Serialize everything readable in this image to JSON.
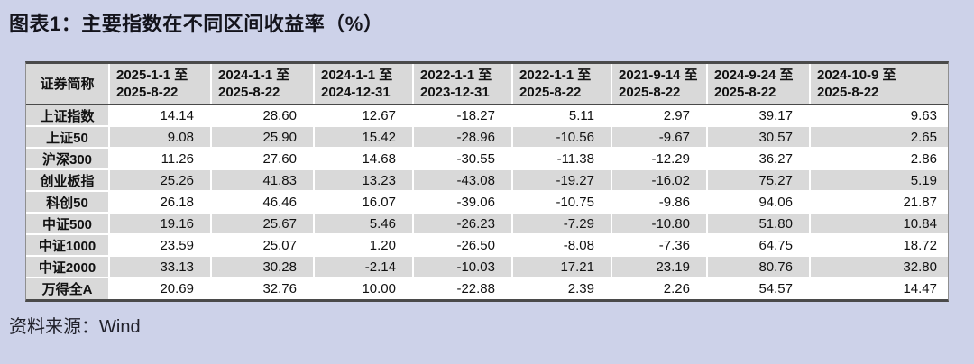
{
  "title": "图表1：主要指数在不同区间收益率（%）",
  "source_label": "资料来源：Wind",
  "colors": {
    "page_bg": "#cdd2e9",
    "cell_gray": "#d9d9d9",
    "row_white": "#ffffff",
    "border_dark": "#4a4a4a",
    "text": "#111111"
  },
  "table": {
    "columns": [
      "证券简称",
      "2025-1-1 至\n2025-8-22",
      "2024-1-1 至\n2025-8-22",
      "2024-1-1 至\n2024-12-31",
      "2022-1-1 至\n2023-12-31",
      "2022-1-1 至\n2025-8-22",
      "2021-9-14 至\n2025-8-22",
      "2024-9-24 至\n2025-8-22",
      "2024-10-9 至\n2025-8-22"
    ],
    "rows": [
      {
        "name": "上证指数",
        "values": [
          "14.14",
          "28.60",
          "12.67",
          "-18.27",
          "5.11",
          "2.97",
          "39.17",
          "9.63"
        ]
      },
      {
        "name": "上证50",
        "values": [
          "9.08",
          "25.90",
          "15.42",
          "-28.96",
          "-10.56",
          "-9.67",
          "30.57",
          "2.65"
        ]
      },
      {
        "name": "沪深300",
        "values": [
          "11.26",
          "27.60",
          "14.68",
          "-30.55",
          "-11.38",
          "-12.29",
          "36.27",
          "2.86"
        ]
      },
      {
        "name": "创业板指",
        "values": [
          "25.26",
          "41.83",
          "13.23",
          "-43.08",
          "-19.27",
          "-16.02",
          "75.27",
          "5.19"
        ]
      },
      {
        "name": "科创50",
        "values": [
          "26.18",
          "46.46",
          "16.07",
          "-39.06",
          "-10.75",
          "-9.86",
          "94.06",
          "21.87"
        ]
      },
      {
        "name": "中证500",
        "values": [
          "19.16",
          "25.67",
          "5.46",
          "-26.23",
          "-7.29",
          "-10.80",
          "51.80",
          "10.84"
        ]
      },
      {
        "name": "中证1000",
        "values": [
          "23.59",
          "25.07",
          "1.20",
          "-26.50",
          "-8.08",
          "-7.36",
          "64.75",
          "18.72"
        ]
      },
      {
        "name": "中证2000",
        "values": [
          "33.13",
          "30.28",
          "-2.14",
          "-10.03",
          "17.21",
          "23.19",
          "80.76",
          "32.80"
        ]
      },
      {
        "name": "万得全A",
        "values": [
          "20.69",
          "32.76",
          "10.00",
          "-22.88",
          "2.39",
          "2.26",
          "54.57",
          "14.47"
        ]
      }
    ]
  }
}
